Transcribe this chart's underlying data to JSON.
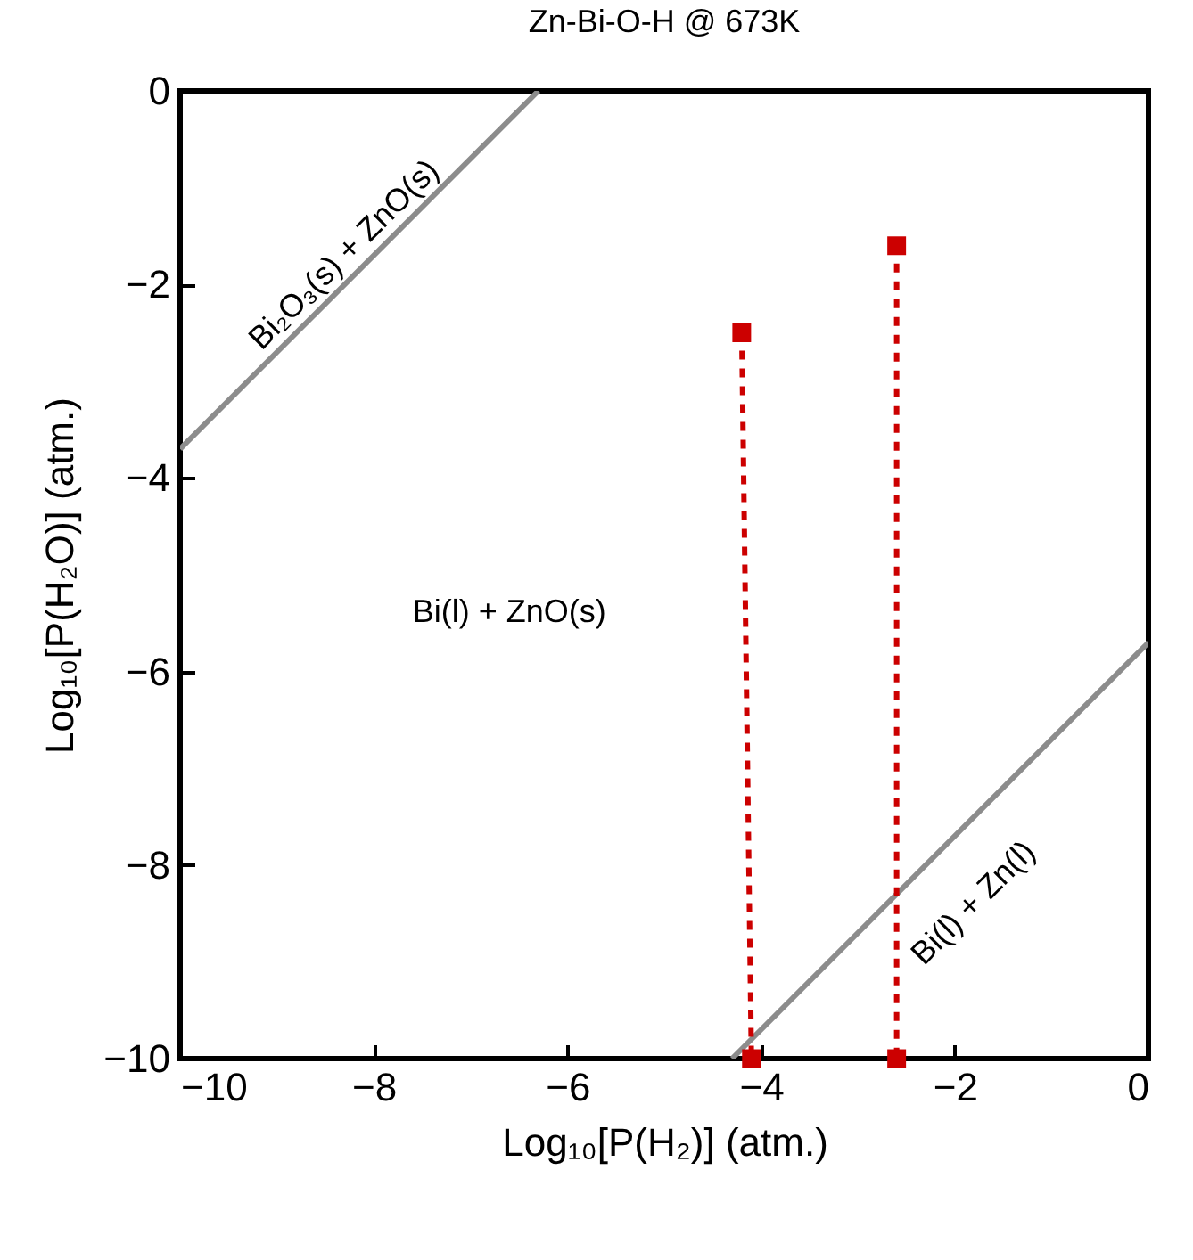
{
  "chart_data": {
    "type": "line",
    "title": "Zn-Bi-O-H @ 673K",
    "xlabel": "Log₁₀[P(H₂)]  (atm.)",
    "ylabel": "Log₁₀[P(H₂O)]  (atm.)",
    "xlim": [
      -10,
      0
    ],
    "xticks": [
      -10,
      -8,
      -6,
      -4,
      -2,
      0
    ],
    "ylim": [
      -10,
      0
    ],
    "yticks": [
      -10,
      -8,
      -6,
      -4,
      -2,
      0
    ],
    "grid": false,
    "series": [
      {
        "color": "#8c8c8c",
        "x": [
          -10,
          -6.3
        ],
        "values": [
          -3.7,
          0
        ],
        "marker": "none",
        "line_style": "solid"
      },
      {
        "color": "#8c8c8c",
        "x": [
          -4.3,
          0
        ],
        "values": [
          -10,
          -5.7
        ],
        "marker": "none",
        "line_style": "solid"
      },
      {
        "color": "#cc0000",
        "x": [
          -4.2,
          -4.1
        ],
        "values": [
          -2.5,
          -10
        ],
        "marker": "square",
        "line_style": "dashed"
      },
      {
        "color": "#cc0000",
        "x": [
          -2.6,
          -2.6
        ],
        "values": [
          -1.6,
          -10
        ],
        "marker": "square",
        "line_style": "dashed"
      }
    ],
    "annotations": [
      "Bi₂O₃(s) + ZnO(s)",
      "Bi(l) + ZnO(s)",
      "Bi(l) + Zn(l)"
    ]
  }
}
